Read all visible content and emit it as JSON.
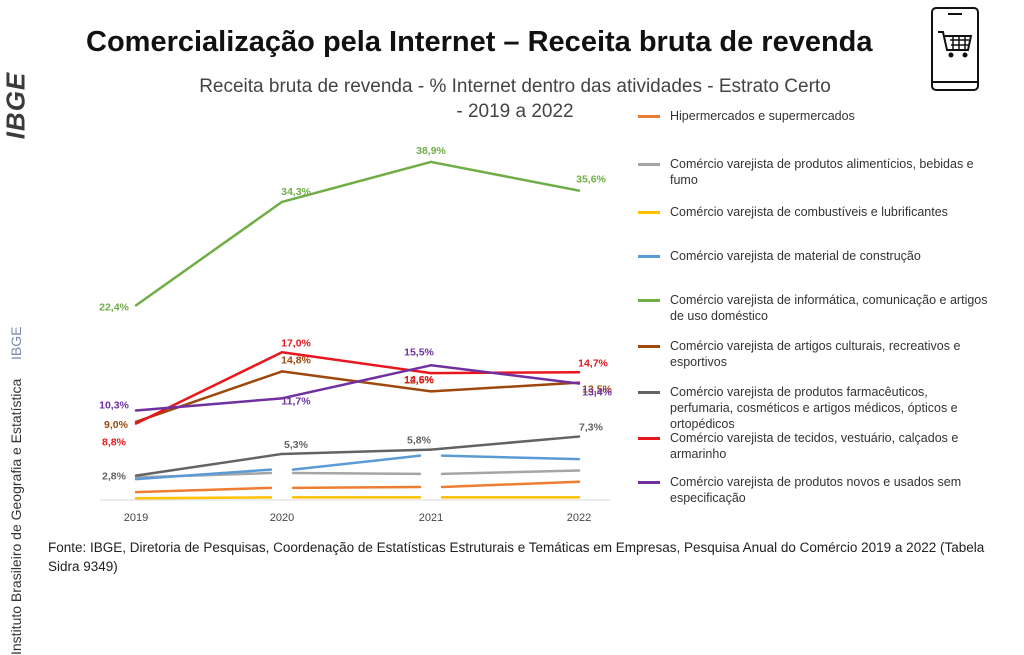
{
  "header": {
    "logo_text": "IBGE",
    "institute_name": "Instituto Brasileiro de Geografia e Estatística",
    "institute_acronym": "IBGE",
    "main_title": "Comercialização pela Internet – Receita bruta de revenda",
    "cart_icon": "mobile-shopping-cart-icon"
  },
  "source_note": "Fonte: IBGE, Diretoria de Pesquisas, Coordenação de Estatísticas Estruturais e Temáticas em Empresas, Pesquisa Anual do Comércio 2019 a 2022 (Tabela Sidra 9349)",
  "chart_data": {
    "type": "line",
    "title_line1": "Receita bruta de revenda - % Internet dentro das atividades - Estrato Certo",
    "title_line2": "- 2019 a 2022",
    "categories": [
      "2019",
      "2020",
      "2021",
      "2022"
    ],
    "ylim": [
      0,
      42
    ],
    "grid": false,
    "legend_position": "right",
    "series": [
      {
        "name": "Hipermercados e supermercados",
        "color": "#ED7D31",
        "values": [
          0.9,
          1.4,
          1.5,
          2.1
        ],
        "labels": [
          "",
          "",
          "",
          ""
        ]
      },
      {
        "name": "Comércio varejista de produtos alimentícios, bebidas e fumo",
        "color": "#A5A5A5",
        "values": [
          2.6,
          3.1,
          3.0,
          3.4
        ],
        "labels": [
          "",
          "",
          "",
          ""
        ]
      },
      {
        "name": "Comércio varejista de combustíveis e lubrificantes",
        "color": "#FFC000",
        "values": [
          0.2,
          0.3,
          0.3,
          0.3
        ],
        "labels": [
          "",
          "",
          "",
          ""
        ]
      },
      {
        "name": "Comércio varejista de material de construção",
        "color": "#5B9BD5",
        "values": [
          2.4,
          3.5,
          5.1,
          4.7
        ],
        "labels": [
          "",
          "",
          "",
          ""
        ]
      },
      {
        "name": "Comércio varejista de informática, comunicação e artigos de uso doméstico",
        "color": "#70AD47",
        "values": [
          22.4,
          34.3,
          38.9,
          35.6
        ],
        "labels": [
          "22,4%",
          "34,3%",
          "38,9%",
          "35,6%"
        ]
      },
      {
        "name": "Comércio varejista de artigos culturais, recreativos e esportivos",
        "color": "#9E480E",
        "values": [
          9.0,
          14.8,
          12.5,
          13.5
        ],
        "labels": [
          "9,0%",
          "14,8%",
          "12,5%",
          "13,5%"
        ]
      },
      {
        "name": "Comércio varejista de produtos farmacêuticos, perfumaria, cosméticos e artigos médicos, ópticos e ortopédicos",
        "color": "#636363",
        "values": [
          2.8,
          5.3,
          5.8,
          7.3
        ],
        "labels": [
          "2,8%",
          "5,3%",
          "5,8%",
          "7,3%"
        ]
      },
      {
        "name": "Comércio varejista de tecidos, vestuário, calçados e armarinho",
        "color": "#E8171E",
        "values": [
          8.8,
          17.0,
          14.6,
          14.7
        ],
        "labels": [
          "8,8%",
          "17,0%",
          "14,6%",
          "14,7%"
        ]
      },
      {
        "name": "Comércio varejista de produtos novos e usados sem especificação",
        "color": "#7030A0",
        "values": [
          10.3,
          11.7,
          15.5,
          13.4
        ],
        "labels": [
          "10,3%",
          "11,7%",
          "15,5%",
          "13,4%"
        ]
      }
    ]
  }
}
